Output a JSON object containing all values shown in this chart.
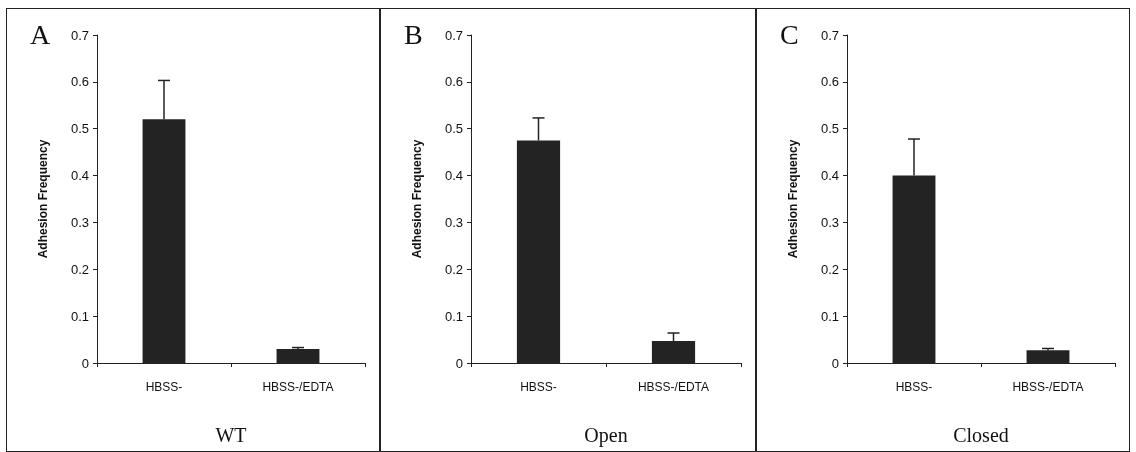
{
  "chart_data": [
    {
      "type": "bar",
      "title": "A",
      "xlabel": "WT",
      "ylabel": "Adhesion Frequency",
      "categories": [
        "HBSS-",
        "HBSS-/EDTA"
      ],
      "values": [
        0.52,
        0.03
      ],
      "errors": [
        [
          0.52,
          0.603
        ],
        [
          0.03,
          0.033
        ]
      ],
      "color": "#232323",
      "ylim": [
        0,
        0.7
      ],
      "yticks": [
        0,
        0.1,
        0.2,
        0.3,
        0.4,
        0.5,
        0.6,
        0.7
      ],
      "grid": false
    },
    {
      "type": "bar",
      "title": "B",
      "xlabel": "Open",
      "ylabel": "Adhesion Frequency",
      "categories": [
        "HBSS-",
        "HBSS-/EDTA"
      ],
      "values": [
        0.475,
        0.047
      ],
      "errors": [
        [
          0.475,
          0.523
        ],
        [
          0.047,
          0.064
        ]
      ],
      "color": "#232323",
      "ylim": [
        0,
        0.7
      ],
      "yticks": [
        0,
        0.1,
        0.2,
        0.3,
        0.4,
        0.5,
        0.6,
        0.7
      ],
      "grid": false
    },
    {
      "type": "bar",
      "title": "C",
      "xlabel": "Closed",
      "ylabel": "Adhesion Frequency",
      "categories": [
        "HBSS-",
        "HBSS-/EDTA"
      ],
      "values": [
        0.4,
        0.027
      ],
      "errors": [
        [
          0.4,
          0.478
        ],
        [
          0.027,
          0.031
        ]
      ],
      "color": "#232323",
      "ylim": [
        0,
        0.7
      ],
      "yticks": [
        0,
        0.1,
        0.2,
        0.3,
        0.4,
        0.5,
        0.6,
        0.7
      ],
      "grid": false
    }
  ]
}
